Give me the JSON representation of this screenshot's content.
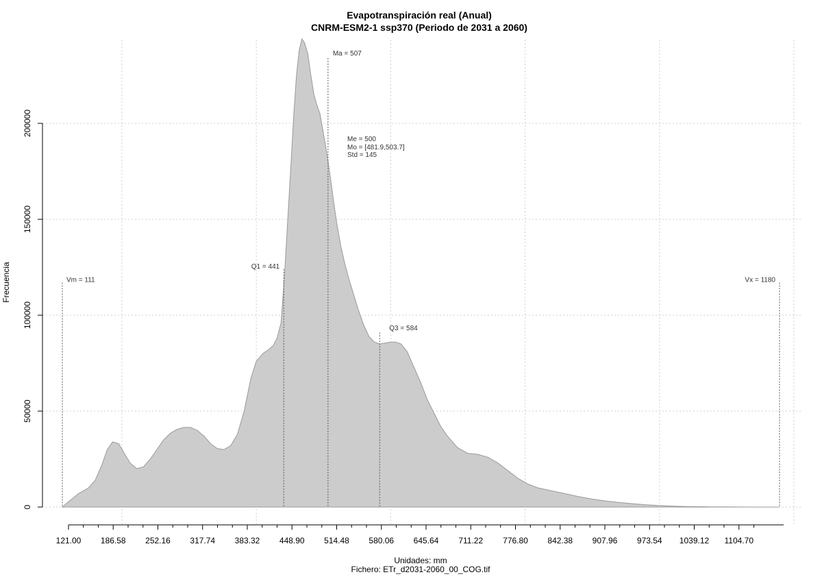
{
  "chart_data": {
    "type": "area",
    "title": "Evapotranspiración real (Anual)",
    "subtitle": "CNRM-ESM2-1 ssp370 (Periodo de 2031 a 2060)",
    "xlabel": "Unidades: mm",
    "ylabel": "Frecuencia",
    "source": "Fichero: ETr_d2031-2060_00_COG.tif",
    "xlim": [
      111,
      1180
    ],
    "ylim": [
      0,
      240000
    ],
    "grid": true,
    "xtick_labels": [
      "121.00",
      "186.58",
      "252.16",
      "317.74",
      "383.32",
      "448.90",
      "514.48",
      "580.06",
      "645.64",
      "711.22",
      "776.80",
      "842.38",
      "907.96",
      "973.54",
      "1039.12",
      "1104.70"
    ],
    "yticks": [
      "0",
      "50000",
      "100000",
      "150000",
      "200000"
    ],
    "density": {
      "x": [
        111,
        121,
        135,
        150,
        160,
        170,
        178,
        186,
        195,
        205,
        212,
        222,
        232,
        242,
        252,
        262,
        272,
        282,
        292,
        302,
        312,
        322,
        332,
        342,
        352,
        362,
        372,
        382,
        392,
        400,
        410,
        418,
        425,
        431,
        437,
        442,
        447,
        452,
        456,
        460,
        464,
        468,
        472,
        477,
        481,
        486,
        490,
        495,
        500,
        505,
        510,
        515,
        520,
        526,
        532,
        538,
        545,
        552,
        560,
        568,
        576,
        584,
        592,
        600,
        608,
        616,
        625,
        635,
        645,
        655,
        665,
        675,
        685,
        700,
        715,
        730,
        745,
        760,
        775,
        790,
        805,
        820,
        840,
        860,
        880,
        900,
        920,
        940,
        960,
        980,
        1000,
        1020,
        1040,
        1060,
        1080,
        1100,
        1120,
        1140,
        1160,
        1180
      ],
      "y": [
        0,
        3000,
        7000,
        10000,
        14000,
        22000,
        30000,
        34000,
        33000,
        27000,
        23000,
        20000,
        21000,
        25000,
        30000,
        35000,
        38500,
        40500,
        41500,
        41500,
        40000,
        37000,
        33000,
        30500,
        30000,
        32000,
        38000,
        50000,
        67000,
        76000,
        80000,
        82000,
        84000,
        88000,
        96000,
        120000,
        150000,
        180000,
        205000,
        225000,
        238000,
        244000,
        242000,
        236000,
        226000,
        215000,
        210000,
        205000,
        195000,
        185000,
        173000,
        160000,
        148000,
        136000,
        127000,
        119000,
        111000,
        103000,
        95000,
        89000,
        86000,
        85000,
        85500,
        86000,
        86000,
        85000,
        81000,
        73000,
        65000,
        56000,
        49000,
        42000,
        37000,
        31000,
        28000,
        27500,
        26000,
        23000,
        19000,
        15000,
        12000,
        10000,
        8500,
        7000,
        5500,
        4200,
        3200,
        2400,
        1800,
        1200,
        800,
        500,
        300,
        200,
        100,
        60,
        30,
        10,
        0,
        0
      ]
    },
    "annotations": [
      {
        "label": "Vm = 111",
        "x": 111,
        "y_top": 117000
      },
      {
        "label": "Q1 = 441",
        "x": 441,
        "y_top": 124000
      },
      {
        "label": "Ma = 507",
        "x": 507,
        "y_top": 234000
      },
      {
        "label": "Q3 = 584",
        "x": 584,
        "y_top": 91000
      },
      {
        "label": "Vx = 1180",
        "x": 1180,
        "y_top": 117000
      }
    ],
    "stats": [
      "Me = 500",
      "Mo = [481.9,503.7]",
      "Std = 145"
    ]
  }
}
